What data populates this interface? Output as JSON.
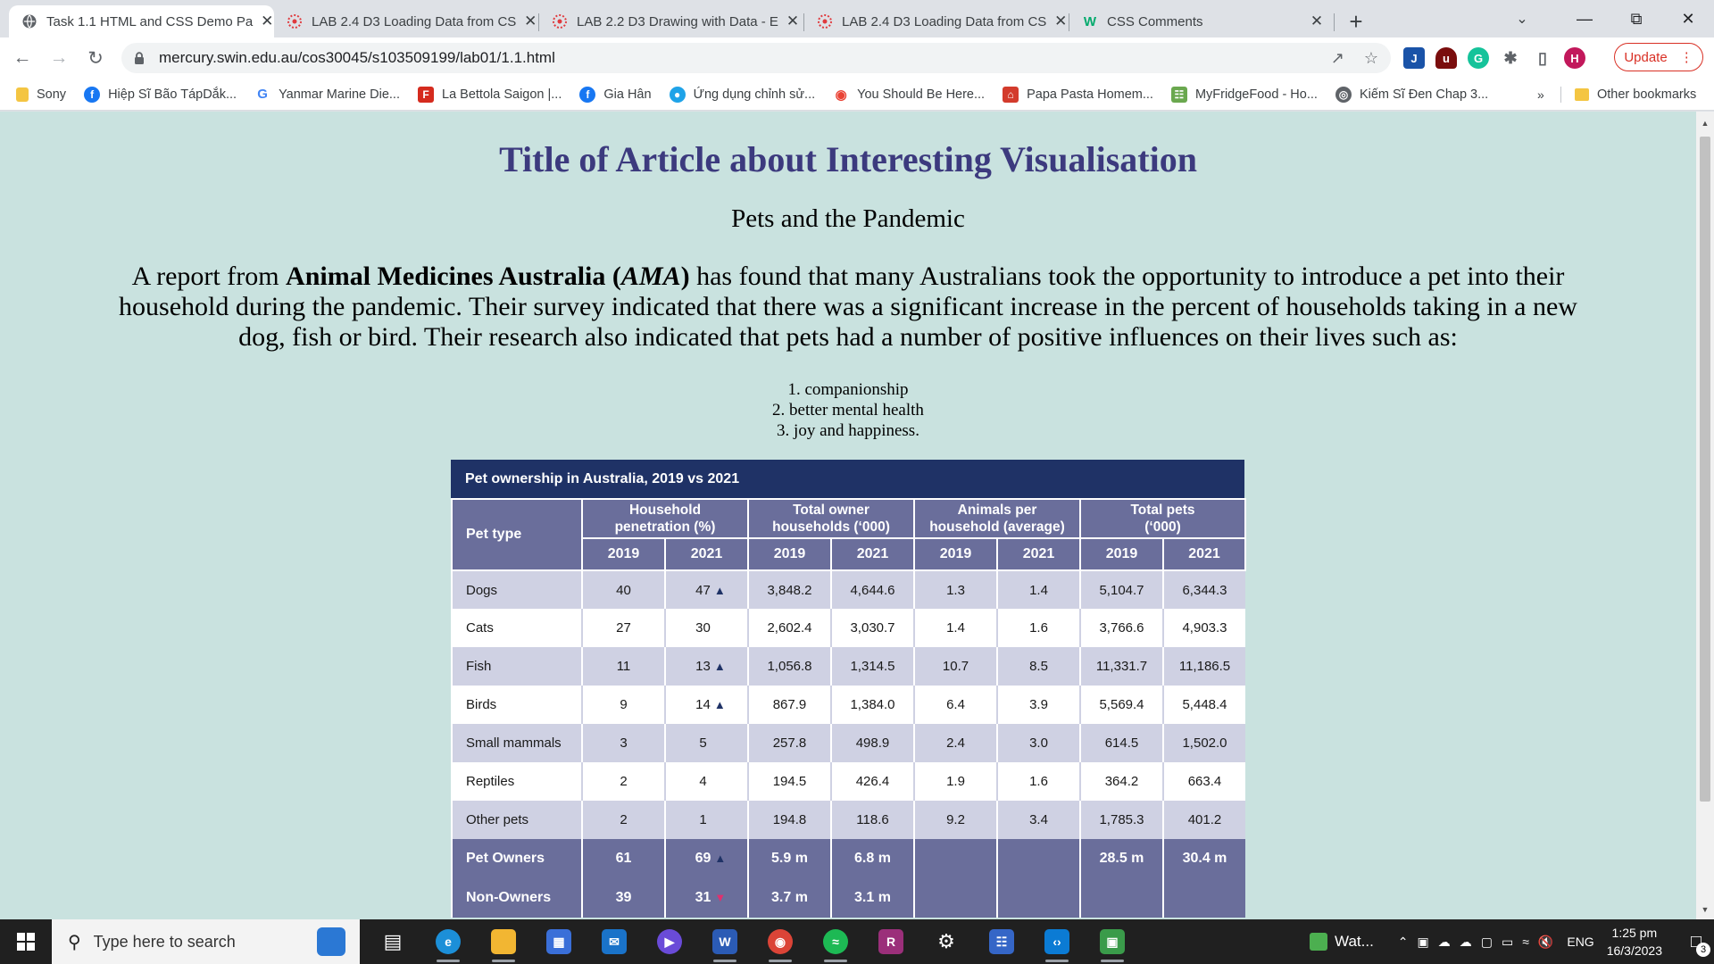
{
  "browser": {
    "tabs": [
      {
        "title": "Task 1.1 HTML and CSS Demo Pa",
        "icon": "globe-icon",
        "active": true
      },
      {
        "title": "LAB 2.4 D3 Loading Data from CS",
        "icon": "canvas-icon",
        "active": false
      },
      {
        "title": "LAB 2.2 D3 Drawing with Data - E",
        "icon": "canvas-icon",
        "active": false
      },
      {
        "title": "LAB 2.4 D3 Loading Data from CS",
        "icon": "canvas-icon",
        "active": false
      },
      {
        "title": "CSS Comments",
        "icon": "w3schools-icon",
        "active": false
      }
    ],
    "url": "mercury.swin.edu.au/cos30045/s103509199/lab01/1.1.html",
    "profile_initial": "H",
    "update_label": "Update",
    "bookmarks": [
      {
        "label": "Sony",
        "icon": "folder-icon"
      },
      {
        "label": "Hiệp Sĩ Bão TápDắk...",
        "icon": "facebook-icon"
      },
      {
        "label": "Yanmar Marine Die...",
        "icon": "google-icon"
      },
      {
        "label": "La Bettola Saigon |...",
        "icon": "restaurant-icon"
      },
      {
        "label": "Gia Hân",
        "icon": "facebook-icon"
      },
      {
        "label": "Ứng dụng chỉnh sử...",
        "icon": "app-icon"
      },
      {
        "label": "You Should Be Here...",
        "icon": "circle-icon"
      },
      {
        "label": "Papa Pasta Homem...",
        "icon": "gift-icon"
      },
      {
        "label": "MyFridgeFood - Ho...",
        "icon": "fridge-icon"
      },
      {
        "label": "Kiếm Sĩ Đen Chap 3...",
        "icon": "globe-icon"
      }
    ],
    "bookmarks_overflow": "»",
    "other_bookmarks": "Other bookmarks"
  },
  "article": {
    "title": "Title of Article about Interesting Visualisation",
    "subtitle": "Pets and the Pandemic",
    "intro": {
      "part1": "A report from ",
      "org": "Animal Medicines Australia",
      "open": " (",
      "abbr": "AMA",
      "close": ")",
      "part2": " has found that many Australians took the opportunity to introduce a pet into their household during the pandemic. Their survey indicated that there was a significant increase in the percent of households taking in a new dog, fish or bird. Their research also indicated that pets had a number of positive influences on their lives such as:"
    },
    "benefits": [
      "1. companionship",
      "2. better mental health",
      "3. joy and happiness."
    ]
  },
  "table": {
    "title": "Pet ownership in Australia, 2019 vs 2021",
    "pet_type_header": "Pet type",
    "groups": [
      {
        "line1": "Household",
        "line2": "penetration (%)"
      },
      {
        "line1": "Total owner",
        "line2": "households (‘000)"
      },
      {
        "line1": "Animals per",
        "line2": "household (average)"
      },
      {
        "line1": "Total pets",
        "line2": "(‘000)"
      }
    ],
    "years": [
      "2019",
      "2021"
    ],
    "rows": [
      {
        "name": "Dogs",
        "pen19": "40",
        "pen21": "47",
        "trend": "up",
        "own19": "3,848.2",
        "own21": "4,644.6",
        "apc19": "1.3",
        "apc21": "1.4",
        "tot19": "5,104.7",
        "tot21": "6,344.3"
      },
      {
        "name": "Cats",
        "pen19": "27",
        "pen21": "30",
        "trend": "",
        "own19": "2,602.4",
        "own21": "3,030.7",
        "apc19": "1.4",
        "apc21": "1.6",
        "tot19": "3,766.6",
        "tot21": "4,903.3"
      },
      {
        "name": "Fish",
        "pen19": "11",
        "pen21": "13",
        "trend": "up",
        "own19": "1,056.8",
        "own21": "1,314.5",
        "apc19": "10.7",
        "apc21": "8.5",
        "tot19": "11,331.7",
        "tot21": "11,186.5"
      },
      {
        "name": "Birds",
        "pen19": "9",
        "pen21": "14",
        "trend": "up",
        "own19": "867.9",
        "own21": "1,384.0",
        "apc19": "6.4",
        "apc21": "3.9",
        "tot19": "5,569.4",
        "tot21": "5,448.4"
      },
      {
        "name": "Small mammals",
        "pen19": "3",
        "pen21": "5",
        "trend": "",
        "own19": "257.8",
        "own21": "498.9",
        "apc19": "2.4",
        "apc21": "3.0",
        "tot19": "614.5",
        "tot21": "1,502.0"
      },
      {
        "name": "Reptiles",
        "pen19": "2",
        "pen21": "4",
        "trend": "",
        "own19": "194.5",
        "own21": "426.4",
        "apc19": "1.9",
        "apc21": "1.6",
        "tot19": "364.2",
        "tot21": "663.4"
      },
      {
        "name": "Other pets",
        "pen19": "2",
        "pen21": "1",
        "trend": "",
        "own19": "194.8",
        "own21": "118.6",
        "apc19": "9.2",
        "apc21": "3.4",
        "tot19": "1,785.3",
        "tot21": "401.2"
      }
    ],
    "summary": [
      {
        "name": "Pet Owners",
        "pen19": "61",
        "pen21": "69",
        "trend": "up",
        "own19": "5.9 m",
        "own21": "6.8 m",
        "apc19": "",
        "apc21": "",
        "tot19": "28.5 m",
        "tot21": "30.4 m"
      },
      {
        "name": "Non-Owners",
        "pen19": "39",
        "pen21": "31",
        "trend": "down",
        "own19": "3.7 m",
        "own21": "3.1 m",
        "apc19": "",
        "apc21": "",
        "tot19": "",
        "tot21": ""
      }
    ]
  },
  "taskbar": {
    "search_placeholder": "Type here to search",
    "weather_label": "Wat...",
    "language": "ENG",
    "time": "1:25 pm",
    "date": "16/3/2023",
    "notification_count": "3"
  },
  "colors": {
    "page_background": "#c9e2df",
    "title_color": "#3c3a7e",
    "table_title_bg": "#1f3266",
    "table_header_bg": "#6a6e9b",
    "table_alt_row_bg": "#cfd1e3",
    "arrow_up": "#1f3266",
    "arrow_down": "#e0306e",
    "update_red": "#d93025"
  }
}
